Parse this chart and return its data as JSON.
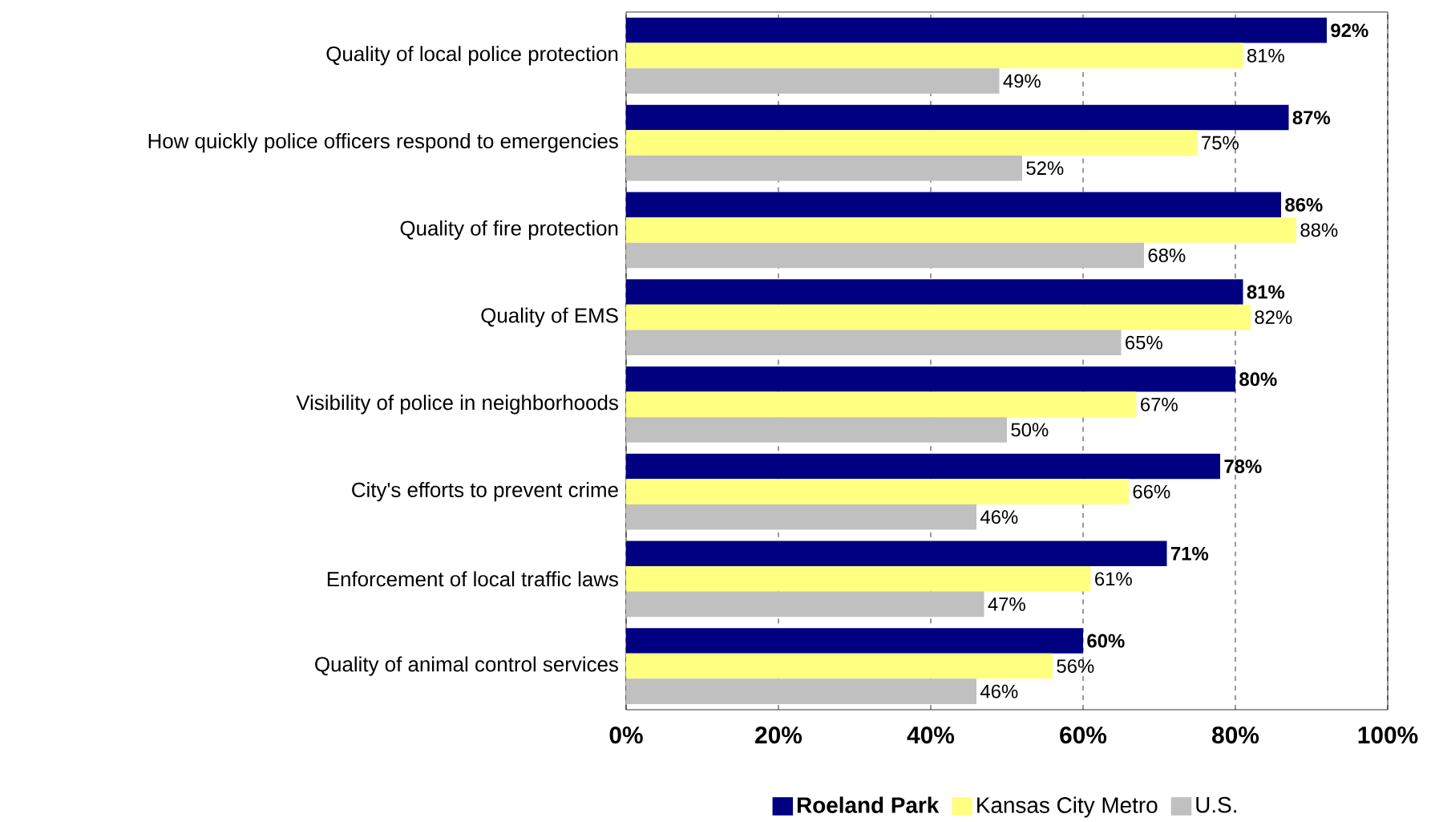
{
  "chart_data": {
    "type": "bar",
    "orientation": "horizontal",
    "categories": [
      "Quality of local police protection",
      "How quickly police officers respond to emergencies",
      "Quality of fire protection",
      "Quality of EMS",
      "Visibility of police in neighborhoods",
      "City's efforts to prevent crime",
      "Enforcement of local traffic laws",
      "Quality of animal control services"
    ],
    "series": [
      {
        "name": "Roeland Park",
        "color": "#000080",
        "values": [
          92,
          87,
          86,
          81,
          80,
          78,
          71,
          60
        ],
        "value_labels": [
          "92%",
          "87%",
          "86%",
          "81%",
          "80%",
          "78%",
          "71%",
          "60%"
        ]
      },
      {
        "name": "Kansas City Metro",
        "color": "#ffff80",
        "values": [
          81,
          75,
          88,
          82,
          67,
          66,
          61,
          56
        ],
        "value_labels": [
          "81%",
          "75%",
          "88%",
          "82%",
          "67%",
          "66%",
          "61%",
          "56%"
        ]
      },
      {
        "name": "U.S.",
        "color": "#c0c0c0",
        "values": [
          49,
          52,
          68,
          65,
          50,
          46,
          47,
          46
        ],
        "value_labels": [
          "49%",
          "52%",
          "68%",
          "65%",
          "50%",
          "46%",
          "47%",
          "46%"
        ]
      }
    ],
    "xlim": [
      0,
      100
    ],
    "xticks": [
      {
        "value": 0,
        "label": "0%"
      },
      {
        "value": 20,
        "label": "20%"
      },
      {
        "value": 40,
        "label": "40%"
      },
      {
        "value": 60,
        "label": "60%"
      },
      {
        "value": 80,
        "label": "80%"
      },
      {
        "value": 100,
        "label": "100%"
      }
    ],
    "grid": "x",
    "legend": "bottom"
  }
}
